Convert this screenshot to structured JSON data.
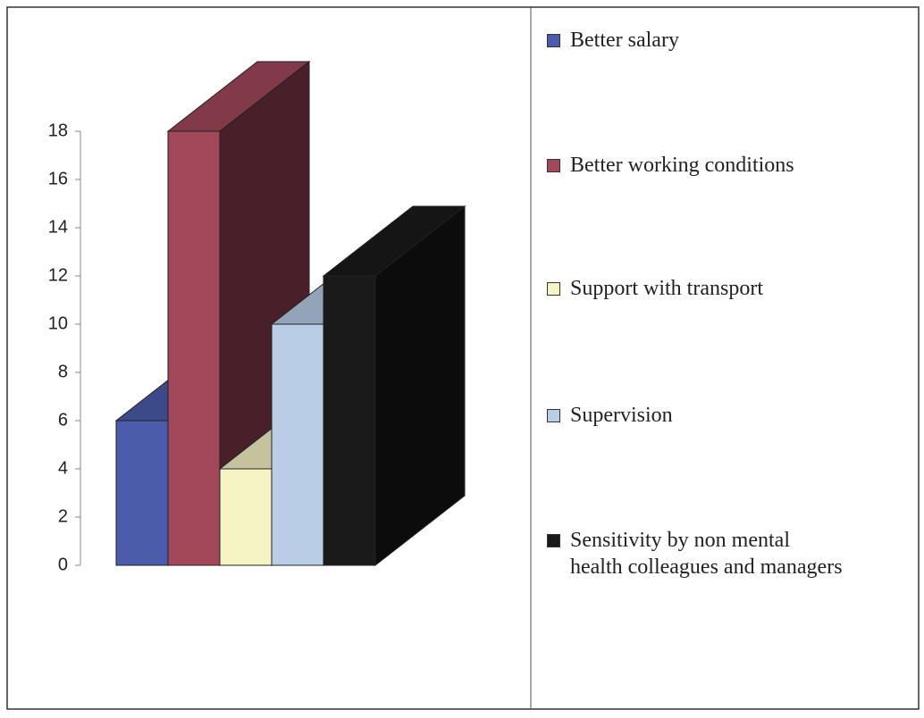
{
  "chart_data": {
    "type": "bar3d",
    "series": [
      {
        "name": "Better salary",
        "color": "#4b5cab",
        "values": [
          6
        ]
      },
      {
        "name": "Better working conditions",
        "color": "#a3475a",
        "values": [
          18
        ]
      },
      {
        "name": "Support with transport",
        "color": "#f6f3c4",
        "values": [
          4
        ]
      },
      {
        "name": "Supervision",
        "color": "#b9cde6",
        "values": [
          10
        ]
      },
      {
        "name": "Sensitivity by non mental\nhealth colleagues and managers",
        "color": "#1a1a1a",
        "values": [
          12
        ]
      }
    ],
    "ylim": [
      0,
      18
    ],
    "yticks": [
      0,
      2,
      4,
      6,
      8,
      10,
      12,
      14,
      16,
      18
    ]
  }
}
